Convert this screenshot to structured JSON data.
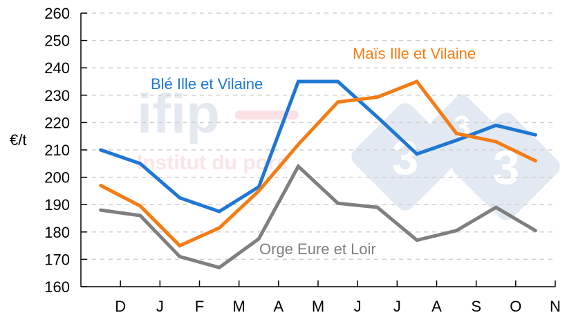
{
  "chart_data": {
    "type": "line",
    "title": "",
    "xlabel": "",
    "ylabel": "€/t",
    "ylim": [
      160,
      260
    ],
    "yticks": [
      160,
      170,
      180,
      190,
      200,
      210,
      220,
      230,
      240,
      250,
      260
    ],
    "grid": "horizontal dashed",
    "categories": [
      "D",
      "J",
      "F",
      "M",
      "A",
      "M",
      "J",
      "J",
      "A",
      "S",
      "O",
      "N"
    ],
    "series": [
      {
        "name": "Blé Ille et Vilaine",
        "color": "#1f77d4",
        "values": [
          210,
          205,
          192.5,
          187.5,
          196.5,
          235,
          235,
          222,
          208.5,
          213.5,
          219,
          215.5
        ]
      },
      {
        "name": "Maïs Ille et Vilaine",
        "color": "#f57c14",
        "values": [
          197,
          189.5,
          175,
          181.5,
          195,
          212,
          227.5,
          229.3,
          235,
          216,
          213,
          206
        ]
      },
      {
        "name": "Orge Eure et Loir",
        "color": "#7f7f7f",
        "values": [
          188,
          186,
          171,
          167,
          177.5,
          204,
          190.5,
          189,
          177,
          180.5,
          189,
          180.5
        ]
      }
    ],
    "annotations": [
      {
        "text": "Blé Ille et Vilaine",
        "series": 0
      },
      {
        "text": "Maïs Ille et Vilaine",
        "series": 1
      },
      {
        "text": "Orge Eure et Loir",
        "series": 2
      }
    ]
  },
  "watermark": {
    "logo_text": "ifip",
    "subtitle": "Institut du porc",
    "badge_glyph": "3"
  }
}
